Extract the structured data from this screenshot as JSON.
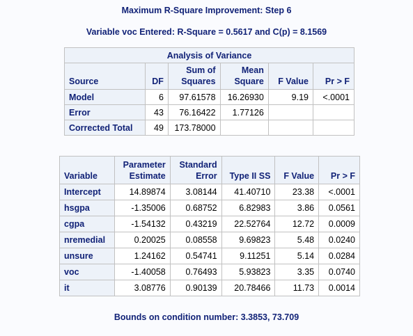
{
  "title": "Maximum R-Square Improvement: Step 6",
  "subtitle": "Variable voc Entered: R-Square = 0.5617 and C(p) = 8.1569",
  "anova": {
    "caption": "Analysis of Variance",
    "headers": {
      "source": "Source",
      "df": "DF",
      "ss": [
        "Sum of",
        "Squares"
      ],
      "ms": [
        "Mean",
        "Square"
      ],
      "f": "F Value",
      "p": "Pr > F"
    },
    "rows": [
      {
        "source": "Model",
        "df": "6",
        "ss": "97.61578",
        "ms": "16.26930",
        "f": "9.19",
        "p": "<.0001"
      },
      {
        "source": "Error",
        "df": "43",
        "ss": "76.16422",
        "ms": "1.77126",
        "f": "",
        "p": ""
      },
      {
        "source": "Corrected Total",
        "df": "49",
        "ss": "173.78000",
        "ms": "",
        "f": "",
        "p": ""
      }
    ]
  },
  "params": {
    "headers": {
      "variable": "Variable",
      "estimate": [
        "Parameter",
        "Estimate"
      ],
      "stderr": [
        "Standard",
        "Error"
      ],
      "ss": "Type II SS",
      "f": "F Value",
      "p": "Pr > F"
    },
    "rows": [
      {
        "variable": "Intercept",
        "estimate": "14.89874",
        "stderr": "3.08144",
        "ss": "41.40710",
        "f": "23.38",
        "p": "<.0001"
      },
      {
        "variable": "hsgpa",
        "estimate": "-1.35006",
        "stderr": "0.68752",
        "ss": "6.82983",
        "f": "3.86",
        "p": "0.0561"
      },
      {
        "variable": "cgpa",
        "estimate": "-1.54132",
        "stderr": "0.43219",
        "ss": "22.52764",
        "f": "12.72",
        "p": "0.0009"
      },
      {
        "variable": "nremedial",
        "estimate": "0.20025",
        "stderr": "0.08558",
        "ss": "9.69823",
        "f": "5.48",
        "p": "0.0240"
      },
      {
        "variable": "unsure",
        "estimate": "1.24162",
        "stderr": "0.54741",
        "ss": "9.11251",
        "f": "5.14",
        "p": "0.0284"
      },
      {
        "variable": "voc",
        "estimate": "-1.40058",
        "stderr": "0.76493",
        "ss": "5.93823",
        "f": "3.35",
        "p": "0.0740"
      },
      {
        "variable": "it",
        "estimate": "3.08776",
        "stderr": "0.90139",
        "ss": "20.78466",
        "f": "11.73",
        "p": "0.0014"
      }
    ]
  },
  "footer": "Bounds on condition number: 3.3853, 73.709",
  "colors": {
    "header_text": "#112277",
    "header_bg": "#edf2f9",
    "cell_bg": "#ffffff",
    "border": "#c1c1c1",
    "page_bg": "#fafbfe"
  }
}
